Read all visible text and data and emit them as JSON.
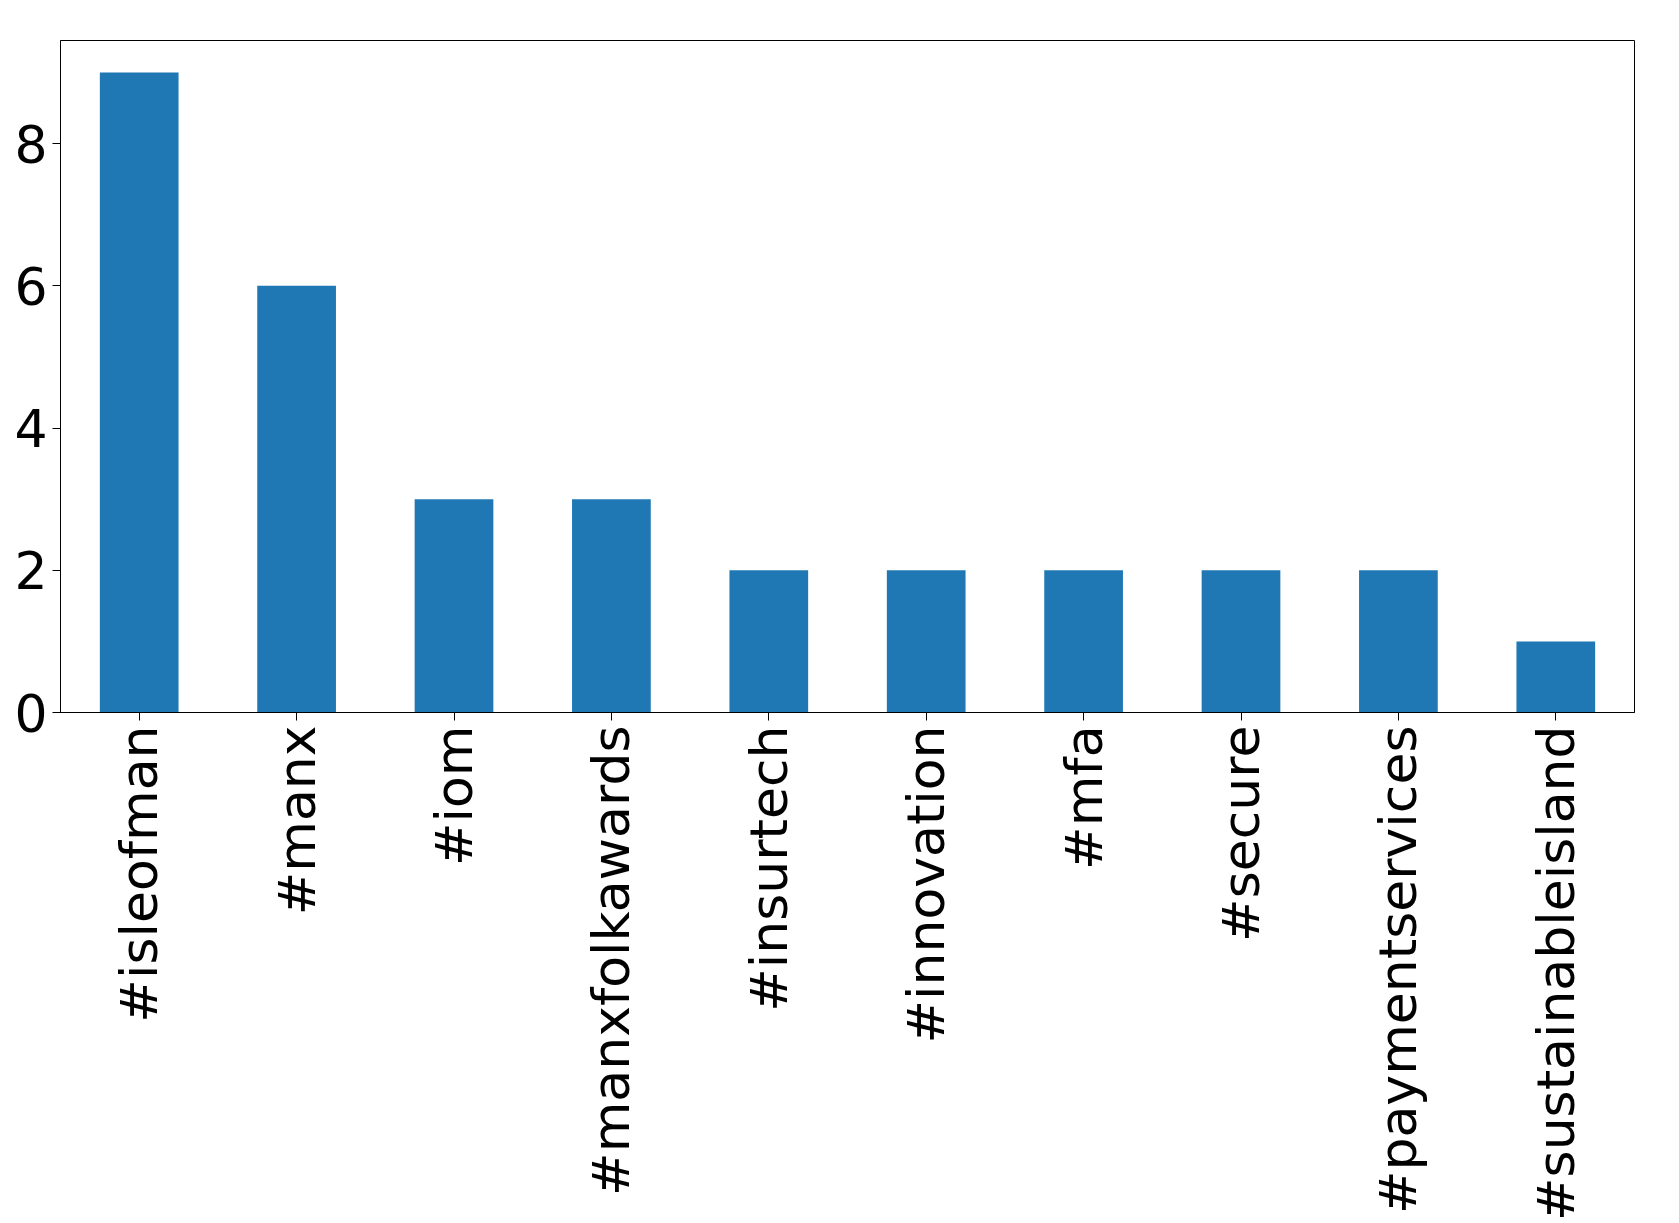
{
  "chart_data": {
    "type": "bar",
    "categories": [
      "#isleofman",
      "#manx",
      "#iom",
      "#manxfolkawards",
      "#insurtech",
      "#innovation",
      "#mfa",
      "#secure",
      "#paymentservices",
      "#sustainableisland"
    ],
    "values": [
      9,
      6,
      3,
      3,
      2,
      2,
      2,
      2,
      2,
      1
    ],
    "color": "#1f77b4",
    "ylim": [
      0,
      9.45
    ],
    "yticks": [
      0,
      2,
      4,
      6,
      8
    ],
    "grid": false
  }
}
